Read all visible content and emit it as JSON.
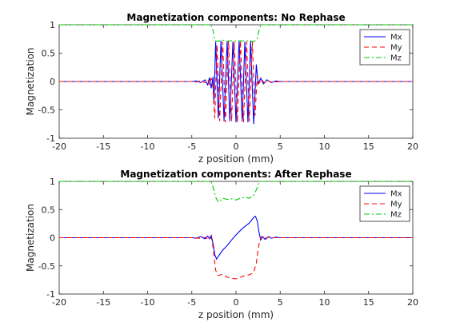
{
  "chart_data": [
    {
      "type": "line",
      "title": "Magnetization components: No Rephase",
      "xlabel": "z position (mm)",
      "ylabel": "Magnetization",
      "xlim": [
        -20,
        20
      ],
      "ylim": [
        -1,
        1
      ],
      "xticks": [
        "-20",
        "-15",
        "-10",
        "-5",
        "0",
        "5",
        "10",
        "15",
        "20"
      ],
      "yticks": [
        "-1",
        "-0.5",
        "0",
        "0.5",
        "1"
      ],
      "legend_position": "top-right",
      "series": [
        {
          "name": "Mx",
          "color": "#0000ff",
          "dash": "solid",
          "points": [
            [
              -20,
              0
            ],
            [
              -5,
              0
            ],
            [
              -4.5,
              0.01
            ],
            [
              -4,
              -0.02
            ],
            [
              -3.5,
              0.03
            ],
            [
              -3.2,
              -0.06
            ],
            [
              -3.0,
              0.07
            ],
            [
              -2.8,
              -0.12
            ],
            [
              -2.6,
              0.08
            ],
            [
              -2.5,
              -0.4
            ],
            [
              -2.3,
              0.7
            ],
            [
              -2.0,
              -0.65
            ],
            [
              -1.7,
              0.72
            ],
            [
              -1.35,
              -0.7
            ],
            [
              -1.0,
              0.72
            ],
            [
              -0.7,
              -0.7
            ],
            [
              -0.35,
              0.7
            ],
            [
              0,
              -0.72
            ],
            [
              0.35,
              0.72
            ],
            [
              0.7,
              -0.7
            ],
            [
              1.0,
              0.7
            ],
            [
              1.35,
              -0.72
            ],
            [
              1.65,
              0.72
            ],
            [
              2.0,
              -0.75
            ],
            [
              2.3,
              0.3
            ],
            [
              2.5,
              -0.05
            ],
            [
              2.8,
              0.06
            ],
            [
              3.1,
              -0.04
            ],
            [
              3.5,
              0.03
            ],
            [
              4,
              -0.02
            ],
            [
              4.5,
              0.01
            ],
            [
              5,
              0
            ],
            [
              20,
              0
            ]
          ]
        },
        {
          "name": "My",
          "color": "#ff0000",
          "dash": "dashed",
          "points": [
            [
              -20,
              0
            ],
            [
              -5,
              0
            ],
            [
              -4.5,
              -0.01
            ],
            [
              -4,
              0.02
            ],
            [
              -3.5,
              -0.02
            ],
            [
              -3.2,
              0.04
            ],
            [
              -3.0,
              -0.05
            ],
            [
              -2.8,
              0.06
            ],
            [
              -2.6,
              -0.1
            ],
            [
              -2.4,
              -0.65
            ],
            [
              -2.15,
              0.65
            ],
            [
              -1.85,
              -0.7
            ],
            [
              -1.5,
              0.7
            ],
            [
              -1.2,
              -0.72
            ],
            [
              -0.85,
              0.72
            ],
            [
              -0.5,
              -0.7
            ],
            [
              -0.2,
              0.7
            ],
            [
              0.15,
              -0.72
            ],
            [
              0.5,
              0.72
            ],
            [
              0.85,
              -0.72
            ],
            [
              1.2,
              0.7
            ],
            [
              1.5,
              -0.7
            ],
            [
              1.85,
              0.7
            ],
            [
              2.15,
              -0.6
            ],
            [
              2.4,
              0.1
            ],
            [
              2.6,
              -0.03
            ],
            [
              2.9,
              0.04
            ],
            [
              3.2,
              -0.03
            ],
            [
              3.5,
              0.02
            ],
            [
              4,
              -0.01
            ],
            [
              5,
              0
            ],
            [
              20,
              0
            ]
          ]
        },
        {
          "name": "Mz",
          "color": "#00cc00",
          "dash": "dashdot",
          "points": [
            [
              -20,
              1
            ],
            [
              -3.0,
              1
            ],
            [
              -2.8,
              0.99
            ],
            [
              -2.6,
              0.9
            ],
            [
              -2.4,
              0.72
            ],
            [
              -2.0,
              0.71
            ],
            [
              -1.5,
              0.73
            ],
            [
              -1,
              0.71
            ],
            [
              -0.5,
              0.72
            ],
            [
              0,
              0.71
            ],
            [
              0.5,
              0.72
            ],
            [
              1,
              0.71
            ],
            [
              1.5,
              0.72
            ],
            [
              2.0,
              0.7
            ],
            [
              2.4,
              0.75
            ],
            [
              2.6,
              0.9
            ],
            [
              2.8,
              0.99
            ],
            [
              3.0,
              1
            ],
            [
              20,
              1
            ]
          ]
        }
      ]
    },
    {
      "type": "line",
      "title": "Magnetization components: After Rephase",
      "xlabel": "z position (mm)",
      "ylabel": "Magnetization",
      "xlim": [
        -20,
        20
      ],
      "ylim": [
        -1,
        1
      ],
      "xticks": [
        "-20",
        "-15",
        "-10",
        "-5",
        "0",
        "5",
        "10",
        "15",
        "20"
      ],
      "yticks": [
        "-1",
        "-0.5",
        "0",
        "0.5",
        "1"
      ],
      "legend_position": "top-right",
      "series": [
        {
          "name": "Mx",
          "color": "#0000ff",
          "dash": "solid",
          "points": [
            [
              -20,
              0
            ],
            [
              -5,
              0
            ],
            [
              -4.5,
              -0.01
            ],
            [
              -4,
              0.02
            ],
            [
              -3.5,
              -0.02
            ],
            [
              -3.2,
              0.03
            ],
            [
              -3.0,
              -0.02
            ],
            [
              -2.8,
              0.04
            ],
            [
              -2.6,
              -0.1
            ],
            [
              -2.4,
              -0.3
            ],
            [
              -2.2,
              -0.38
            ],
            [
              -2.0,
              -0.33
            ],
            [
              -1.5,
              -0.22
            ],
            [
              -1,
              -0.14
            ],
            [
              -0.5,
              -0.04
            ],
            [
              0,
              0.05
            ],
            [
              0.5,
              0.13
            ],
            [
              1,
              0.2
            ],
            [
              1.5,
              0.26
            ],
            [
              2.0,
              0.36
            ],
            [
              2.2,
              0.38
            ],
            [
              2.4,
              0.3
            ],
            [
              2.6,
              0.1
            ],
            [
              2.8,
              -0.04
            ],
            [
              3.0,
              0.02
            ],
            [
              3.3,
              -0.03
            ],
            [
              3.7,
              0.02
            ],
            [
              4,
              -0.01
            ],
            [
              4.5,
              0.01
            ],
            [
              5,
              0
            ],
            [
              20,
              0
            ]
          ]
        },
        {
          "name": "My",
          "color": "#ff0000",
          "dash": "dashed",
          "points": [
            [
              -20,
              0
            ],
            [
              -5,
              0
            ],
            [
              -4,
              -0.01
            ],
            [
              -3.5,
              0.01
            ],
            [
              -3.2,
              -0.02
            ],
            [
              -2.9,
              0.02
            ],
            [
              -2.7,
              -0.05
            ],
            [
              -2.5,
              -0.3
            ],
            [
              -2.3,
              -0.58
            ],
            [
              -2.0,
              -0.67
            ],
            [
              -1.5,
              -0.65
            ],
            [
              -1,
              -0.7
            ],
            [
              -0.5,
              -0.72
            ],
            [
              0,
              -0.73
            ],
            [
              0.5,
              -0.7
            ],
            [
              1,
              -0.67
            ],
            [
              1.5,
              -0.66
            ],
            [
              2.0,
              -0.62
            ],
            [
              2.3,
              -0.45
            ],
            [
              2.5,
              -0.2
            ],
            [
              2.7,
              -0.05
            ],
            [
              2.9,
              0.02
            ],
            [
              3.2,
              -0.02
            ],
            [
              3.6,
              0.01
            ],
            [
              4,
              0
            ],
            [
              20,
              0
            ]
          ]
        },
        {
          "name": "Mz",
          "color": "#00cc00",
          "dash": "dashdot",
          "points": [
            [
              -20,
              1
            ],
            [
              -3.0,
              1
            ],
            [
              -2.8,
              0.99
            ],
            [
              -2.6,
              0.9
            ],
            [
              -2.3,
              0.72
            ],
            [
              -2.0,
              0.63
            ],
            [
              -1.5,
              0.7
            ],
            [
              -1,
              0.68
            ],
            [
              -0.5,
              0.69
            ],
            [
              0,
              0.67
            ],
            [
              0.5,
              0.7
            ],
            [
              1,
              0.72
            ],
            [
              1.5,
              0.7
            ],
            [
              2.0,
              0.75
            ],
            [
              2.3,
              0.85
            ],
            [
              2.6,
              0.98
            ],
            [
              2.8,
              1
            ],
            [
              20,
              1
            ]
          ]
        }
      ]
    }
  ]
}
